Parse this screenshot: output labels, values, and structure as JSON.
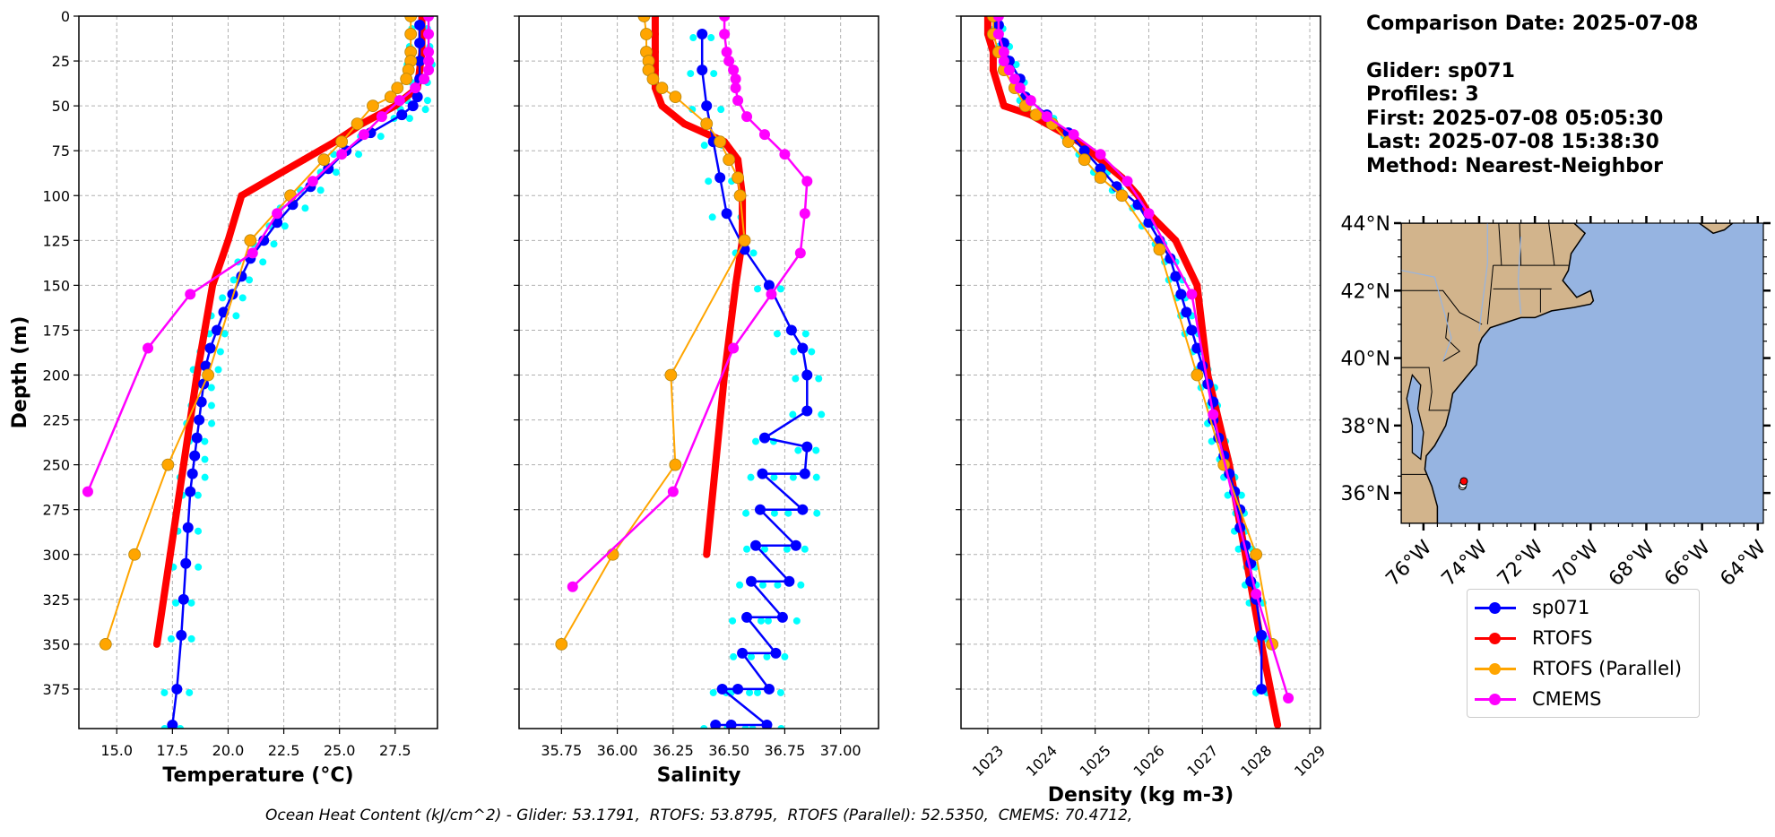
{
  "info_box": {
    "comparison_date": "Comparison Date: 2025-07-08",
    "glider": "Glider: sp071",
    "profiles": "Profiles: 3",
    "first": "First: 2025-07-08 05:05:30",
    "last": "Last: 2025-07-08 15:38:30",
    "method": "Method: Nearest-Neighbor"
  },
  "footer": {
    "ohc_text": "Ocean Heat Content (kJ/cm^2) - Glider: 53.1791,  RTOFS: 53.8795,  RTOFS (Parallel): 52.5350,  CMEMS: 70.4712,",
    "values": {
      "Glider": 53.1791,
      "RTOFS": 53.8795,
      "RTOFS (Parallel)": 52.535,
      "CMEMS": 70.4712
    },
    "units": "kJ/cm^2"
  },
  "legend": {
    "entries": [
      {
        "label": "sp071",
        "color": "#0000ff"
      },
      {
        "label": "RTOFS",
        "color": "#ff0000"
      },
      {
        "label": "RTOFS (Parallel)",
        "color": "#ffa500"
      },
      {
        "label": "CMEMS",
        "color": "#ff00ff"
      }
    ]
  },
  "colors": {
    "glider": "#0000ff",
    "glider_profiles": "#00ffff",
    "rtofs": "#ff0000",
    "rtofs_parallel": "#ffa500",
    "cmems": "#ff00ff",
    "land": "#d2b48c",
    "ocean": "#96b4e1",
    "grid": "#b0b0b0"
  },
  "chart_data": [
    {
      "type": "line",
      "title": "",
      "xlabel": "Temperature (°C)",
      "ylabel": "Depth (m)",
      "xlim": [
        13.3,
        29.4
      ],
      "ylim": [
        397,
        0
      ],
      "y_inverted": true,
      "grid": true,
      "xticks": [
        15.0,
        17.5,
        20.0,
        22.5,
        25.0,
        27.5
      ],
      "xtick_labels": [
        "15.0",
        "17.5",
        "20.0",
        "22.5",
        "25.0",
        "27.5"
      ],
      "yticks": [
        0,
        25,
        50,
        75,
        100,
        125,
        150,
        175,
        200,
        225,
        250,
        275,
        300,
        325,
        350,
        375
      ],
      "series": [
        {
          "name": "sp071",
          "x": [
            28.6,
            28.6,
            28.6,
            28.6,
            28.5,
            28.3,
            27.8,
            26.4,
            25.3,
            24.5,
            23.7,
            22.9,
            22.2,
            21.6,
            21.0,
            20.6,
            20.2,
            19.8,
            19.5,
            19.2,
            19.0,
            18.9,
            18.8,
            18.7,
            18.6,
            18.5,
            18.4,
            18.3,
            18.2,
            18.1,
            18.0,
            17.9,
            17.7,
            17.5
          ],
          "y": [
            5,
            15,
            25,
            35,
            45,
            50,
            55,
            65,
            75,
            85,
            95,
            105,
            115,
            125,
            135,
            145,
            155,
            165,
            175,
            185,
            195,
            205,
            215,
            225,
            235,
            245,
            255,
            265,
            285,
            305,
            325,
            345,
            375,
            395
          ]
        },
        {
          "name": "RTOFS",
          "x": [
            28.7,
            28.7,
            28.7,
            28.6,
            28.5,
            27.5,
            26.0,
            24.8,
            23.4,
            22.0,
            20.6,
            20.0,
            19.3,
            18.6,
            18.0,
            17.4,
            16.8
          ],
          "y": [
            0,
            10,
            20,
            30,
            40,
            50,
            60,
            70,
            80,
            90,
            100,
            125,
            150,
            200,
            250,
            300,
            350
          ]
        },
        {
          "name": "RTOFS (Parallel)",
          "x": [
            28.2,
            28.2,
            28.2,
            28.2,
            28.1,
            28.0,
            27.6,
            27.3,
            26.5,
            25.8,
            25.1,
            24.3,
            22.8,
            21.0,
            19.1,
            17.3,
            15.8,
            14.5
          ],
          "y": [
            0,
            10,
            20,
            25,
            30,
            35,
            40,
            45,
            50,
            60,
            70,
            80,
            100,
            125,
            200,
            250,
            300,
            350
          ]
        },
        {
          "name": "CMEMS",
          "x": [
            29.0,
            29.0,
            29.0,
            29.0,
            29.0,
            28.8,
            28.4,
            27.7,
            26.9,
            26.1,
            25.1,
            23.8,
            22.2,
            21.1,
            18.3,
            16.4,
            13.7
          ],
          "y": [
            0,
            10,
            20,
            25,
            30,
            35,
            40,
            47,
            56,
            66,
            77,
            92,
            110,
            132,
            155,
            185,
            265
          ]
        }
      ]
    },
    {
      "type": "line",
      "title": "",
      "xlabel": "Salinity",
      "ylabel": "",
      "xlim": [
        35.56,
        37.17
      ],
      "ylim": [
        397,
        0
      ],
      "y_inverted": true,
      "grid": true,
      "xticks": [
        35.75,
        36.0,
        36.25,
        36.5,
        36.75,
        37.0
      ],
      "xtick_labels": [
        "35.75",
        "36.00",
        "36.25",
        "36.50",
        "36.75",
        "37.00"
      ],
      "yticks": [
        0,
        25,
        50,
        75,
        100,
        125,
        150,
        175,
        200,
        225,
        250,
        275,
        300,
        325,
        350,
        375
      ],
      "series": [
        {
          "name": "sp071",
          "x": [
            36.38,
            36.38,
            36.4,
            36.43,
            36.46,
            36.49,
            36.57,
            36.68,
            36.78,
            36.83,
            36.85,
            36.85,
            36.85,
            36.84,
            36.83,
            36.8,
            36.77,
            36.74,
            36.71,
            36.68,
            36.67,
            36.66,
            36.65,
            36.64,
            36.62,
            36.6,
            36.58,
            36.56,
            36.54,
            36.51,
            36.47,
            36.44
          ],
          "y": [
            10,
            30,
            50,
            70,
            90,
            110,
            130,
            150,
            175,
            185,
            200,
            220,
            240,
            255,
            275,
            295,
            315,
            335,
            355,
            375,
            395,
            235,
            255,
            275,
            295,
            315,
            335,
            355,
            375,
            395,
            375,
            395
          ]
        },
        {
          "name": "RTOFS",
          "x": [
            36.17,
            36.17,
            36.17,
            36.17,
            36.17,
            36.2,
            36.3,
            36.48,
            36.54,
            36.55,
            36.56,
            36.56,
            36.53,
            36.48,
            36.44,
            36.4
          ],
          "y": [
            0,
            10,
            20,
            30,
            40,
            50,
            60,
            70,
            80,
            90,
            100,
            125,
            150,
            200,
            250,
            300
          ]
        },
        {
          "name": "RTOFS (Parallel)",
          "x": [
            36.12,
            36.13,
            36.13,
            36.14,
            36.14,
            36.16,
            36.2,
            36.26,
            36.4,
            36.46,
            36.5,
            36.54,
            36.55,
            36.57,
            36.24,
            36.26,
            35.98,
            35.75
          ],
          "y": [
            0,
            10,
            20,
            25,
            30,
            35,
            40,
            45,
            60,
            70,
            80,
            90,
            100,
            125,
            200,
            250,
            300,
            350
          ]
        },
        {
          "name": "CMEMS",
          "x": [
            36.48,
            36.48,
            36.49,
            36.5,
            36.52,
            36.53,
            36.53,
            36.54,
            36.58,
            36.66,
            36.75,
            36.85,
            36.84,
            36.82,
            36.69,
            36.52,
            36.25,
            35.8
          ],
          "y": [
            0,
            10,
            20,
            25,
            30,
            35,
            40,
            47,
            56,
            66,
            77,
            92,
            110,
            132,
            155,
            185,
            265,
            318
          ]
        }
      ]
    },
    {
      "type": "line",
      "title": "",
      "xlabel": "Density (kg m-3)",
      "ylabel": "",
      "xlim": [
        1022.5,
        1029.2
      ],
      "ylim": [
        397,
        0
      ],
      "y_inverted": true,
      "grid": true,
      "xticks": [
        1023,
        1024,
        1025,
        1026,
        1027,
        1028,
        1029
      ],
      "xtick_labels": [
        "1023",
        "1024",
        "1025",
        "1026",
        "1027",
        "1028",
        "1029"
      ],
      "yticks": [
        0,
        25,
        50,
        75,
        100,
        125,
        150,
        175,
        200,
        225,
        250,
        275,
        300,
        325,
        350,
        375
      ],
      "series": [
        {
          "name": "sp071",
          "x": [
            1023.2,
            1023.3,
            1023.4,
            1023.6,
            1023.7,
            1024.1,
            1024.5,
            1024.8,
            1025.1,
            1025.4,
            1025.8,
            1026.0,
            1026.2,
            1026.4,
            1026.5,
            1026.6,
            1026.7,
            1026.8,
            1026.9,
            1027.0,
            1027.1,
            1027.2,
            1027.2,
            1027.3,
            1027.4,
            1027.5,
            1027.6,
            1027.7,
            1027.7,
            1027.8,
            1027.9,
            1027.9,
            1028.0,
            1028.1,
            1028.1
          ],
          "y": [
            5,
            15,
            25,
            35,
            45,
            55,
            65,
            75,
            85,
            95,
            105,
            115,
            125,
            135,
            145,
            155,
            165,
            175,
            185,
            195,
            205,
            215,
            225,
            235,
            245,
            255,
            265,
            275,
            285,
            295,
            305,
            315,
            325,
            345,
            375
          ]
        },
        {
          "name": "RTOFS",
          "x": [
            1023.0,
            1023.0,
            1023.1,
            1023.1,
            1023.2,
            1023.3,
            1023.8,
            1024.1,
            1024.7,
            1025.1,
            1025.5,
            1025.8,
            1026.0,
            1026.5,
            1026.9,
            1027.1,
            1027.5,
            1027.8,
            1028.1,
            1028.4
          ],
          "y": [
            0,
            10,
            20,
            30,
            40,
            50,
            55,
            60,
            70,
            80,
            90,
            100,
            110,
            125,
            150,
            200,
            250,
            300,
            350,
            395
          ]
        },
        {
          "name": "RTOFS (Parallel)",
          "x": [
            1023.1,
            1023.1,
            1023.2,
            1023.3,
            1023.5,
            1023.7,
            1023.9,
            1024.2,
            1024.5,
            1024.8,
            1025.1,
            1025.5,
            1026.2,
            1026.9,
            1027.4,
            1028.0,
            1028.3
          ],
          "y": [
            0,
            10,
            20,
            30,
            40,
            50,
            55,
            60,
            70,
            80,
            90,
            100,
            130,
            200,
            250,
            300,
            350
          ]
        },
        {
          "name": "CMEMS",
          "x": [
            1023.2,
            1023.2,
            1023.3,
            1023.3,
            1023.4,
            1023.5,
            1023.6,
            1023.8,
            1024.1,
            1024.6,
            1025.1,
            1025.6,
            1026.0,
            1026.8,
            1027.2,
            1028.0,
            1028.6
          ],
          "y": [
            0,
            10,
            20,
            25,
            30,
            35,
            40,
            47,
            56,
            66,
            77,
            92,
            110,
            155,
            222,
            322,
            380
          ]
        }
      ]
    },
    {
      "type": "map",
      "title": "",
      "lat_range": [
        35.1,
        44.0
      ],
      "lon_range": [
        -76.8,
        -63.8
      ],
      "lat_ticks": [
        36,
        38,
        40,
        42,
        44
      ],
      "lat_tick_labels": [
        "36°N",
        "38°N",
        "40°N",
        "42°N",
        "44°N"
      ],
      "lon_ticks": [
        -76,
        -74,
        -72,
        -70,
        -68,
        -66,
        -64
      ],
      "lon_tick_labels": [
        "76°W",
        "74°W",
        "72°W",
        "70°W",
        "68°W",
        "66°W",
        "64°W"
      ],
      "glider_track": [
        {
          "lon": -74.6,
          "lat": 36.2,
          "color": "#ffffff"
        },
        {
          "lon": -74.58,
          "lat": 36.25,
          "color": "#ffffff"
        },
        {
          "lon": -74.55,
          "lat": 36.35,
          "color": "#ff0000"
        }
      ]
    }
  ]
}
